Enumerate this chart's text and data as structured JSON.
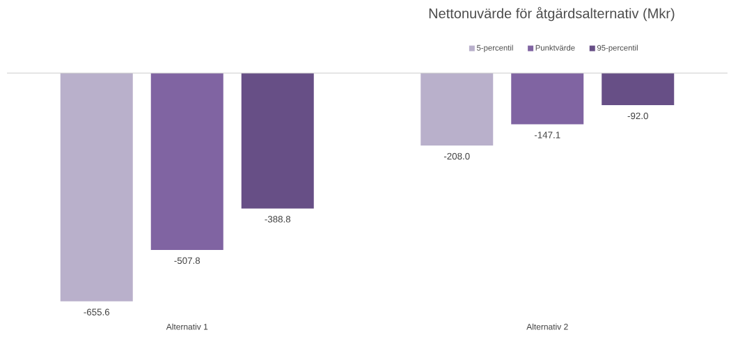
{
  "chart_data": {
    "type": "bar",
    "title": "Nettonuvärde för åtgärdsalternativ (Mkr)",
    "categories": [
      "Alternativ 1",
      "Alternativ 2"
    ],
    "series": [
      {
        "name": "5-percentil",
        "color": "#b9b0cb",
        "values": [
          -655.6,
          -208.0
        ],
        "value_labels": [
          "-655.6",
          "-208.0"
        ]
      },
      {
        "name": "Punktvärde",
        "color": "#8064a2",
        "values": [
          -507.8,
          -147.1
        ],
        "value_labels": [
          "-507.8",
          "-147.1"
        ]
      },
      {
        "name": "95-percentil",
        "color": "#674f86",
        "values": [
          -388.8,
          -92.0
        ],
        "value_labels": [
          "-388.8",
          "-92.0"
        ]
      }
    ],
    "legend": "top"
  }
}
